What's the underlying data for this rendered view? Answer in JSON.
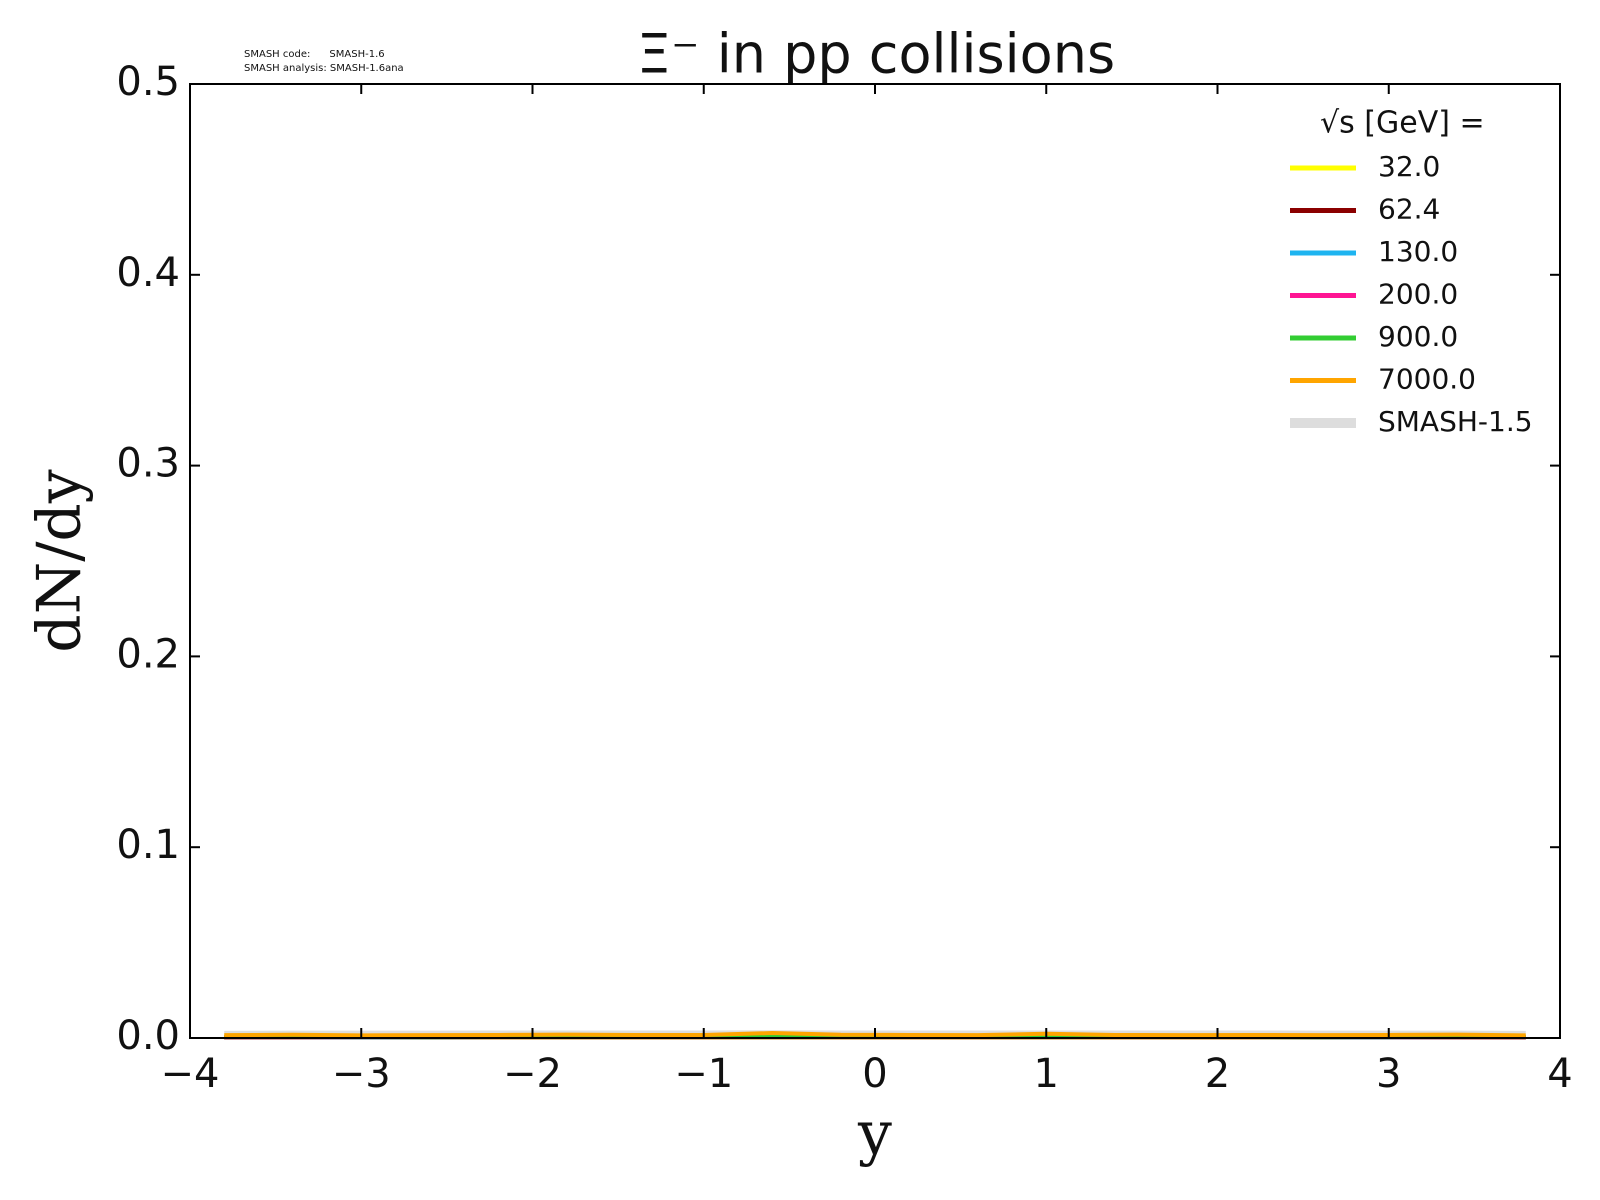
{
  "chart_data": {
    "type": "line",
    "title": "Ξ⁻ in pp collisions",
    "annotations": [
      "SMASH code:      SMASH-1.6",
      "SMASH analysis: SMASH-1.6ana"
    ],
    "xlabel": "y",
    "ylabel": "dN/dy",
    "legend_title": "√s  [GeV] =",
    "legend_loc": "upper right",
    "xlim": [
      -4,
      4
    ],
    "ylim": [
      0,
      0.5
    ],
    "xticks": [
      {
        "value": -4,
        "label": "−4"
      },
      {
        "value": -3,
        "label": "−3"
      },
      {
        "value": -2,
        "label": "−2"
      },
      {
        "value": -1,
        "label": "−1"
      },
      0,
      1,
      2,
      3,
      4
    ],
    "yticks": [
      {
        "value": 0,
        "label": "0.0"
      },
      0.1,
      0.2,
      0.3,
      0.4,
      0.5
    ],
    "x": [
      -3.8,
      -3.4,
      -3.0,
      -2.6,
      -2.2,
      -1.8,
      -1.4,
      -1.0,
      -0.6,
      -0.2,
      0.2,
      0.6,
      1.0,
      1.4,
      1.8,
      2.2,
      2.6,
      3.0,
      3.4,
      3.8
    ],
    "series": [
      {
        "name": "32.0",
        "color": "#ffff00",
        "width": 4,
        "values": [
          0.0002,
          0.0002,
          0.0003,
          0.0002,
          0.0003,
          0.0003,
          0.0003,
          0.0003,
          0.0003,
          0.0003,
          0.0003,
          0.0003,
          0.0003,
          0.0003,
          0.0003,
          0.0003,
          0.0002,
          0.0003,
          0.0002,
          0.0002
        ]
      },
      {
        "name": "62.4",
        "color": "#8b0000",
        "width": 4,
        "values": [
          0.0003,
          0.0003,
          0.0003,
          0.0003,
          0.0004,
          0.0004,
          0.0004,
          0.0004,
          0.0004,
          0.0004,
          0.0004,
          0.0004,
          0.0004,
          0.0004,
          0.0004,
          0.0004,
          0.0003,
          0.0003,
          0.0003,
          0.0003
        ]
      },
      {
        "name": "130.0",
        "color": "#1eb4f0",
        "width": 4,
        "values": [
          0.0004,
          0.0004,
          0.0004,
          0.0004,
          0.0005,
          0.0005,
          0.0005,
          0.0005,
          0.0005,
          0.0005,
          0.0005,
          0.0005,
          0.0005,
          0.0005,
          0.0005,
          0.0005,
          0.0004,
          0.0004,
          0.0004,
          0.0004
        ]
      },
      {
        "name": "200.0",
        "color": "#ff1493",
        "width": 4,
        "values": [
          0.0004,
          0.0004,
          0.0005,
          0.0005,
          0.0005,
          0.0005,
          0.0005,
          0.0006,
          0.0006,
          0.0006,
          0.0006,
          0.0006,
          0.0006,
          0.0005,
          0.0005,
          0.0005,
          0.0005,
          0.0005,
          0.0004,
          0.0004
        ]
      },
      {
        "name": "900.0",
        "color": "#32cd32",
        "width": 4,
        "values": [
          0.0006,
          0.0006,
          0.0007,
          0.0007,
          0.0007,
          0.0008,
          0.0008,
          0.0008,
          0.0009,
          0.0008,
          0.0008,
          0.0009,
          0.0008,
          0.0008,
          0.0008,
          0.0007,
          0.0007,
          0.0007,
          0.0006,
          0.0006
        ]
      },
      {
        "name": "7000.0",
        "color": "#ffa500",
        "width": 4,
        "values": [
          0.0015,
          0.0017,
          0.0014,
          0.0015,
          0.0016,
          0.0018,
          0.0016,
          0.0016,
          0.0026,
          0.0017,
          0.0016,
          0.0015,
          0.0022,
          0.0016,
          0.0015,
          0.0016,
          0.0015,
          0.0016,
          0.0018,
          0.0014
        ]
      },
      {
        "name": "SMASH-1.5",
        "color": "#dddddd",
        "width": 9,
        "values": [
          0.0014,
          0.0015,
          0.0015,
          0.0015,
          0.0016,
          0.0016,
          0.0016,
          0.0016,
          0.0017,
          0.0016,
          0.0016,
          0.0016,
          0.0016,
          0.0016,
          0.0016,
          0.0016,
          0.0015,
          0.0015,
          0.0015,
          0.0014
        ]
      }
    ]
  }
}
